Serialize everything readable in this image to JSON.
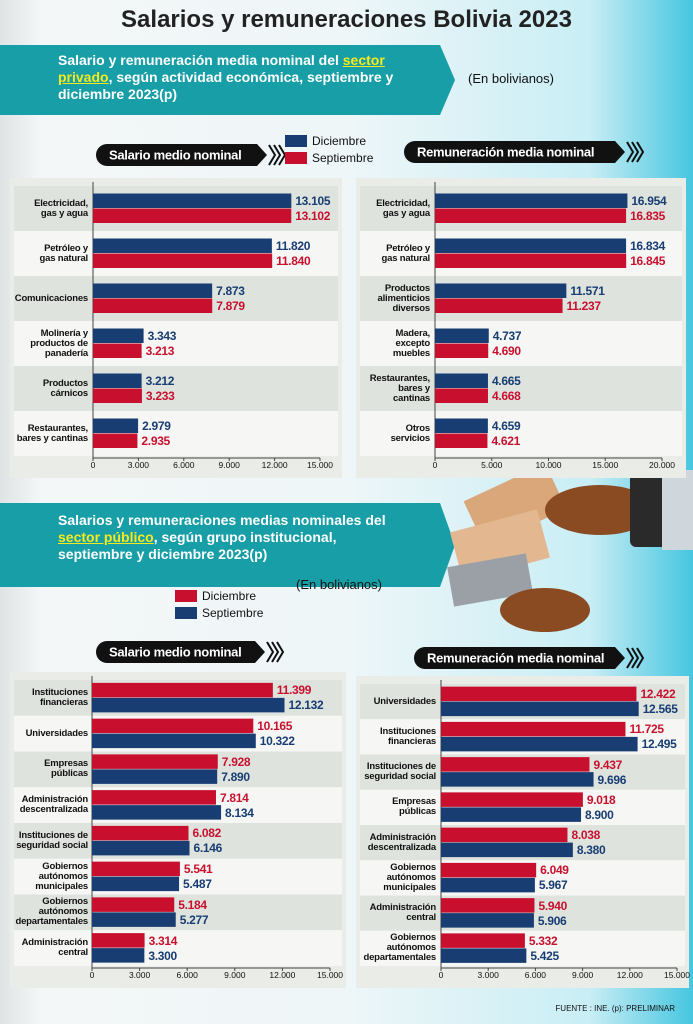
{
  "title": "Salarios y remuneraciones Bolivia 2023",
  "section1": {
    "heading": [
      "Salario y remuneración media nominal del ",
      "sector privado",
      ", según actividad económica, septiembre y diciembre 2023(p)"
    ],
    "unit": "(En bolivianos)"
  },
  "section2": {
    "heading": [
      "Salarios y remuneraciones medias nominales del ",
      "sector público",
      ", según grupo institucional, septiembre y diciembre 2023(p)"
    ],
    "unit": "(En bolivianos)"
  },
  "source": "FUENTE : INE. (p): PRELIMINAR",
  "chart_data": [
    {
      "type": "bar",
      "orientation": "horizontal",
      "title": "Salario medio nominal",
      "legend": true,
      "categories": [
        "Electricidad,\ngas y agua",
        "Petróleo y\ngas natural",
        "Comunicaciones",
        "Molinería y\nproductos de\npanadería",
        "Productos\ncárnicos",
        "Restaurantes,\nbares y cantinas"
      ],
      "series": [
        {
          "name": "Diciembre",
          "color": "#173d73",
          "values": [
            13105,
            11820,
            7873,
            3343,
            3212,
            2979
          ],
          "value_labels": [
            "13.105",
            "11.820",
            "7.873",
            "3.343",
            "3.212",
            "2.979"
          ]
        },
        {
          "name": "Septiembre",
          "color": "#c8102e",
          "values": [
            13102,
            11840,
            7879,
            3213,
            3233,
            2935
          ],
          "value_labels": [
            "13.102",
            "11.840",
            "7.879",
            "3.213",
            "3.233",
            "2.935"
          ]
        }
      ],
      "xlim": [
        0,
        15000
      ],
      "xticks": [
        0,
        {
          "value": 3000,
          "label": "3.000"
        },
        {
          "value": 6000,
          "label": "6.000"
        },
        {
          "value": 9000,
          "label": "9.000"
        },
        {
          "value": 12000,
          "label": "12.000"
        },
        {
          "value": 15000,
          "label": "15.000"
        }
      ]
    },
    {
      "type": "bar",
      "orientation": "horizontal",
      "title": "Remuneración media nominal",
      "legend": false,
      "categories": [
        "Electricidad,\ngas y agua",
        "Petróleo y\ngas natural",
        "Productos\nalimenticios\ndiversos",
        "Madera,\nexcepto\nmuebles",
        "Restaurantes,\nbares y\ncantinas",
        "Otros\nservicios"
      ],
      "series": [
        {
          "color": "#173d73",
          "values": [
            16954,
            16834,
            11571,
            4737,
            4665,
            4659
          ],
          "value_labels": [
            "16.954",
            "16.834",
            "11.571",
            "4.737",
            "4.665",
            "4.659"
          ]
        },
        {
          "color": "#c8102e",
          "values": [
            16835,
            16845,
            11237,
            4690,
            4668,
            4621
          ],
          "value_labels": [
            "16.835",
            "16.845",
            "11.237",
            "4.690",
            "4.668",
            "4.621"
          ]
        }
      ],
      "xlim": [
        0,
        20000
      ],
      "xticks": [
        0,
        {
          "value": 5000,
          "label": "5.000"
        },
        {
          "value": 10000,
          "label": "10.000"
        },
        {
          "value": 15000,
          "label": "15.000"
        },
        {
          "value": 20000,
          "label": "20.000"
        }
      ]
    },
    {
      "type": "bar",
      "orientation": "horizontal",
      "title": "Salario medio nominal",
      "legend": true,
      "categories": [
        "Instituciones\nfinancieras",
        "Universidades",
        "Empresas\npúblicas",
        "Administración\ndescentralizada",
        "Instituciones de\nseguridad social",
        "Gobiernos\nautónomos\nmunicipales",
        "Gobiernos\nautónomos\ndepartamentales",
        "Administración\ncentral"
      ],
      "series": [
        {
          "name": "Diciembre",
          "color": "#c8102e",
          "values": [
            11399,
            10165,
            7928,
            7814,
            6082,
            5541,
            5184,
            3314
          ],
          "value_labels": [
            "11.399",
            "10.165",
            "7.928",
            "7.814",
            "6.082",
            "5.541",
            "5.184",
            "3.314"
          ]
        },
        {
          "name": "Septiembre",
          "color": "#173d73",
          "values": [
            12132,
            10322,
            7890,
            8134,
            6146,
            5487,
            5277,
            3300
          ],
          "value_labels": [
            "12.132",
            "10.322",
            "7.890",
            "8.134",
            "6.146",
            "5.487",
            "5.277",
            "3.300"
          ]
        }
      ],
      "xlim": [
        0,
        15000
      ],
      "xticks": [
        0,
        {
          "value": 3000,
          "label": "3.000"
        },
        {
          "value": 6000,
          "label": "6.000"
        },
        {
          "value": 9000,
          "label": "9.000"
        },
        {
          "value": 12000,
          "label": "12.000"
        },
        {
          "value": 15000,
          "label": "15.000"
        }
      ]
    },
    {
      "type": "bar",
      "orientation": "horizontal",
      "title": "Remuneración media nominal",
      "legend": false,
      "categories": [
        "Universidades",
        "Instituciones\nfinancieras",
        "Instituciones de\nseguridad social",
        "Empresas\npúblicas",
        "Administración\ndescentralizada",
        "Gobiernos\nautónomos\nmunicipales",
        "Administración\ncentral",
        "Gobiernos\nautónomos\ndepartamentales"
      ],
      "series": [
        {
          "color": "#c8102e",
          "values": [
            12422,
            11725,
            9437,
            9018,
            8038,
            6049,
            5940,
            5332
          ],
          "value_labels": [
            "12.422",
            "11.725",
            "9.437",
            "9.018",
            "8.038",
            "6.049",
            "5.940",
            "5.332"
          ]
        },
        {
          "color": "#173d73",
          "values": [
            12565,
            12495,
            9696,
            8900,
            8380,
            5967,
            5906,
            5425
          ],
          "value_labels": [
            "12.565",
            "12.495",
            "9.696",
            "8.900",
            "8.380",
            "5.967",
            "5.906",
            "5.425"
          ]
        }
      ],
      "xlim": [
        0,
        15000
      ],
      "xticks": [
        0,
        {
          "value": 3000,
          "label": "3.000"
        },
        {
          "value": 6000,
          "label": "6.000"
        },
        {
          "value": 9000,
          "label": "9.000"
        },
        {
          "value": 12000,
          "label": "12.000"
        },
        {
          "value": 15000,
          "label": "15.000"
        }
      ]
    }
  ]
}
